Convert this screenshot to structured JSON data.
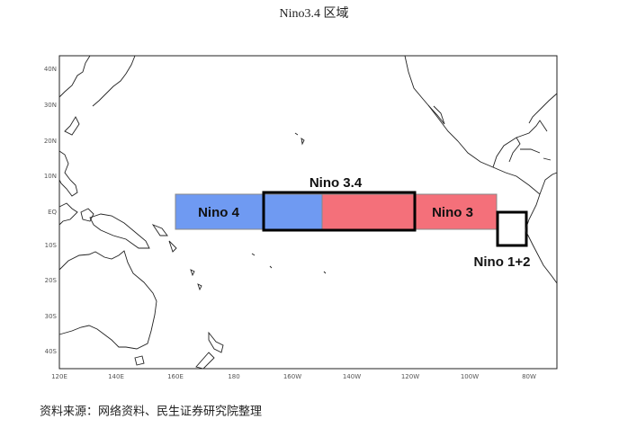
{
  "map": {
    "title": "Nino3.4 区域",
    "lat_labels": [
      "40N",
      "30N",
      "20N",
      "10N",
      "EQ",
      "10S",
      "20S",
      "30S",
      "40S"
    ],
    "lon_labels": [
      "120E",
      "140E",
      "160E",
      "180",
      "160W",
      "140W",
      "120W",
      "100W",
      "80W"
    ],
    "regions": {
      "nino4": "Nino 4",
      "nino34": "Nino 3.4",
      "nino3": "Nino 3",
      "nino12": "Nino 1+2"
    },
    "source": "资料来源：网络资料、民生证券研究院整理"
  }
}
